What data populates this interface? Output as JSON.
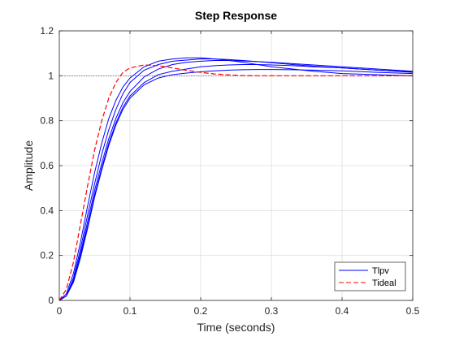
{
  "chart_data": {
    "type": "line",
    "title": "Step Response",
    "xlabel": "Time (seconds)",
    "ylabel": "Amplitude",
    "xlim": [
      0,
      0.5
    ],
    "ylim": [
      0,
      1.2
    ],
    "xticks": [
      0,
      0.1,
      0.2,
      0.3,
      0.4,
      0.5
    ],
    "yticks": [
      0,
      0.2,
      0.4,
      0.6,
      0.8,
      1,
      1.2
    ],
    "xtick_labels": [
      "0",
      "0.1",
      "0.2",
      "0.3",
      "0.4",
      "0.5"
    ],
    "ytick_labels": [
      "0",
      "0.2",
      "0.4",
      "0.6",
      "0.8",
      "1",
      "1.2"
    ],
    "grid": true,
    "reference_line": 1,
    "legend": {
      "placement": "bottom-right",
      "entries": [
        {
          "label": "Tlpv",
          "color": "#0000ff",
          "style": "solid"
        },
        {
          "label": "Tideal",
          "color": "#ff0000",
          "style": "dashed"
        }
      ]
    },
    "x": [
      0,
      0.01,
      0.02,
      0.03,
      0.04,
      0.05,
      0.06,
      0.07,
      0.08,
      0.09,
      0.1,
      0.12,
      0.14,
      0.16,
      0.18,
      0.2,
      0.22,
      0.24,
      0.26,
      0.28,
      0.3,
      0.33,
      0.36,
      0.4,
      0.45,
      0.5
    ],
    "series": [
      {
        "name": "Tlpv",
        "color": "#0000ff",
        "style": "solid",
        "values": [
          0,
          0.03,
          0.12,
          0.26,
          0.42,
          0.57,
          0.7,
          0.81,
          0.89,
          0.95,
          0.99,
          1.04,
          1.065,
          1.075,
          1.08,
          1.08,
          1.075,
          1.068,
          1.06,
          1.05,
          1.04,
          1.03,
          1.02,
          1.01,
          1.005,
          1.0
        ]
      },
      {
        "name": "Tlpv",
        "color": "#0000ff",
        "style": "solid",
        "values": [
          0,
          0.02,
          0.1,
          0.23,
          0.38,
          0.52,
          0.65,
          0.76,
          0.85,
          0.92,
          0.97,
          1.025,
          1.05,
          1.065,
          1.07,
          1.075,
          1.075,
          1.072,
          1.068,
          1.063,
          1.058,
          1.05,
          1.043,
          1.035,
          1.025,
          1.015
        ]
      },
      {
        "name": "Tlpv",
        "color": "#0000ff",
        "style": "solid",
        "values": [
          0,
          0.02,
          0.09,
          0.21,
          0.35,
          0.49,
          0.61,
          0.72,
          0.81,
          0.88,
          0.93,
          0.995,
          1.03,
          1.05,
          1.06,
          1.065,
          1.068,
          1.068,
          1.066,
          1.063,
          1.06,
          1.054,
          1.048,
          1.04,
          1.03,
          1.02
        ]
      },
      {
        "name": "Tlpv",
        "color": "#0000ff",
        "style": "solid",
        "values": [
          0,
          0.02,
          0.09,
          0.2,
          0.33,
          0.47,
          0.59,
          0.7,
          0.79,
          0.86,
          0.91,
          0.97,
          1.005,
          1.02,
          1.03,
          1.04,
          1.045,
          1.048,
          1.05,
          1.05,
          1.048,
          1.045,
          1.04,
          1.035,
          1.025,
          1.018
        ]
      },
      {
        "name": "Tlpv",
        "color": "#0000ff",
        "style": "solid",
        "values": [
          0,
          0.02,
          0.08,
          0.19,
          0.32,
          0.46,
          0.58,
          0.69,
          0.78,
          0.85,
          0.9,
          0.96,
          0.99,
          1.005,
          1.012,
          1.018,
          1.022,
          1.025,
          1.027,
          1.028,
          1.028,
          1.027,
          1.025,
          1.022,
          1.015,
          1.01
        ]
      },
      {
        "name": "Tideal",
        "color": "#ff0000",
        "style": "dashed",
        "values": [
          0,
          0.05,
          0.17,
          0.34,
          0.51,
          0.67,
          0.8,
          0.9,
          0.97,
          1.015,
          1.035,
          1.048,
          1.045,
          1.035,
          1.024,
          1.015,
          1.008,
          1.004,
          1.001,
          1.0,
          1.0,
          1.0,
          1.0,
          1.0,
          1.0,
          1.0
        ]
      }
    ]
  }
}
